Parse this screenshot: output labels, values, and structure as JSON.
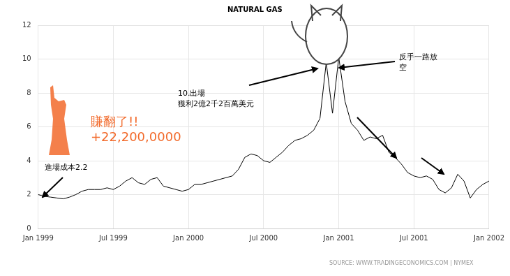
{
  "chart_data": {
    "type": "line",
    "title": "NATURAL GAS",
    "categories": [
      "Jan 1999",
      null,
      null,
      null,
      null,
      null,
      null,
      null,
      null,
      null,
      null,
      null,
      "Jul 1999",
      null,
      null,
      null,
      null,
      null,
      null,
      null,
      null,
      null,
      null,
      null,
      "Jan 2000",
      null,
      null,
      null,
      null,
      null,
      null,
      null,
      null,
      null,
      null,
      null,
      "Jul 2000",
      null,
      null,
      null,
      null,
      null,
      null,
      null,
      null,
      null,
      null,
      null,
      "Jan 2001",
      null,
      null,
      null,
      null,
      null,
      null,
      null,
      null,
      null,
      null,
      null,
      "Jul 2001",
      null,
      null,
      null,
      null,
      null,
      null,
      null,
      null,
      null,
      null,
      null,
      "Jan 2002"
    ],
    "values": [
      2.0,
      1.9,
      1.85,
      1.8,
      1.75,
      1.85,
      2.0,
      2.2,
      2.3,
      2.3,
      2.3,
      2.4,
      2.3,
      2.5,
      2.8,
      3.0,
      2.7,
      2.6,
      2.9,
      3.0,
      2.5,
      2.4,
      2.3,
      2.2,
      2.3,
      2.6,
      2.6,
      2.7,
      2.8,
      2.9,
      3.0,
      3.1,
      3.5,
      4.2,
      4.4,
      4.3,
      4.0,
      3.9,
      4.2,
      4.5,
      4.9,
      5.2,
      5.3,
      5.5,
      5.8,
      6.5,
      9.8,
      6.8,
      10.1,
      7.5,
      6.2,
      5.8,
      5.2,
      5.4,
      5.3,
      5.5,
      4.5,
      4.2,
      3.8,
      3.3,
      3.1,
      3.0,
      3.1,
      2.9,
      2.3,
      2.1,
      2.4,
      3.2,
      2.8,
      1.8,
      2.3,
      2.6,
      2.8
    ],
    "color": "#000000",
    "ylim": [
      0,
      12
    ],
    "yticks": [
      0,
      2,
      4,
      6,
      8,
      10,
      12
    ],
    "grid": true,
    "annotations": [
      {
        "lines": [
          "賺翻了!!",
          "+22,200,0000"
        ],
        "color": "#f26a2b"
      },
      {
        "lines": [
          "進場成本2.2"
        ],
        "color": "#000000"
      },
      {
        "lines": [
          "10.出場",
          "獲利2億2千2百萬美元"
        ],
        "color": "#000000"
      },
      {
        "lines": [
          "反手一路放",
          "空"
        ],
        "color": "#000000"
      }
    ],
    "source": "SOURCE:  WWW.TRADINGECONOMICS.COM  |  NYMEX"
  }
}
